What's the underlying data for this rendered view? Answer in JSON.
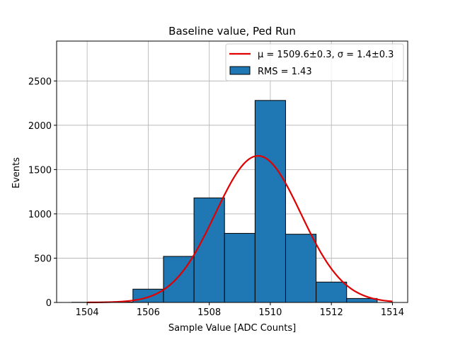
{
  "chart_data": {
    "type": "bar",
    "title": "Baseline value, Ped Run",
    "xlabel": "Sample Value [ADC Counts]",
    "ylabel": "Events",
    "xlim": [
      1503,
      1514.5
    ],
    "ylim": [
      0,
      2950
    ],
    "xticks": [
      1504,
      1506,
      1508,
      1510,
      1512,
      1514
    ],
    "yticks": [
      0,
      500,
      1000,
      1500,
      2000,
      2500
    ],
    "grid": true,
    "legend_placement": "top-right",
    "histogram": {
      "name": "RMS = 1.43",
      "color": "#1f77b4",
      "bins": [
        {
          "x0": 1503.5,
          "x1": 1504.5,
          "count": 2
        },
        {
          "x0": 1504.5,
          "x1": 1505.5,
          "count": 4
        },
        {
          "x0": 1505.5,
          "x1": 1506.5,
          "count": 150
        },
        {
          "x0": 1506.5,
          "x1": 1507.5,
          "count": 520
        },
        {
          "x0": 1507.5,
          "x1": 1508.5,
          "count": 1180
        },
        {
          "x0": 1508.5,
          "x1": 1509.5,
          "count": 780
        },
        {
          "x0": 1509.5,
          "x1": 1510.5,
          "count": 2280
        },
        {
          "x0": 1510.5,
          "x1": 1511.5,
          "count": 770
        },
        {
          "x0": 1511.5,
          "x1": 1512.5,
          "count": 230
        },
        {
          "x0": 1512.5,
          "x1": 1513.5,
          "count": 45
        }
      ]
    },
    "fit": {
      "name": "μ = 1509.6±0.3, σ = 1.4±0.3",
      "type": "gaussian",
      "color": "#e00000",
      "amplitude": 1655,
      "mu": 1509.6,
      "sigma": 1.4,
      "x_range": [
        1504,
        1514
      ]
    }
  }
}
